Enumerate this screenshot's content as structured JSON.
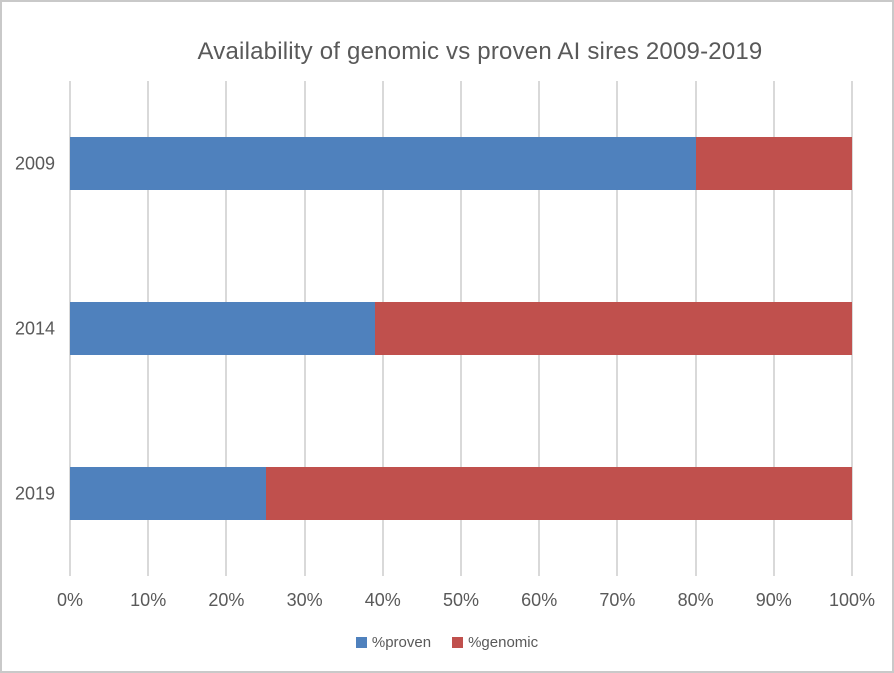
{
  "title": "Availability of genomic vs proven AI sires 2009-2019",
  "colors": {
    "proven_blue": "#4F81BD",
    "genomic_red": "#C0504D",
    "gridline": "#D9D9D9",
    "text": "#595959",
    "frame_border": "#C9C9C9"
  },
  "chart_data": {
    "type": "bar",
    "orientation": "horizontal",
    "stacked": true,
    "title": "Availability of genomic vs proven AI sires 2009-2019",
    "categories": [
      "2009",
      "2014",
      "2019"
    ],
    "series": [
      {
        "name": "%proven",
        "color": "#4F81BD",
        "values": [
          80,
          39,
          25
        ]
      },
      {
        "name": "%genomic",
        "color": "#C0504D",
        "values": [
          20,
          61,
          75
        ]
      }
    ],
    "x_ticks": [
      "0%",
      "10%",
      "20%",
      "30%",
      "40%",
      "50%",
      "60%",
      "70%",
      "80%",
      "90%",
      "100%"
    ],
    "xlim": [
      0,
      100
    ],
    "xlabel": "",
    "ylabel": "",
    "grid": "vertical",
    "legend_position": "bottom"
  }
}
